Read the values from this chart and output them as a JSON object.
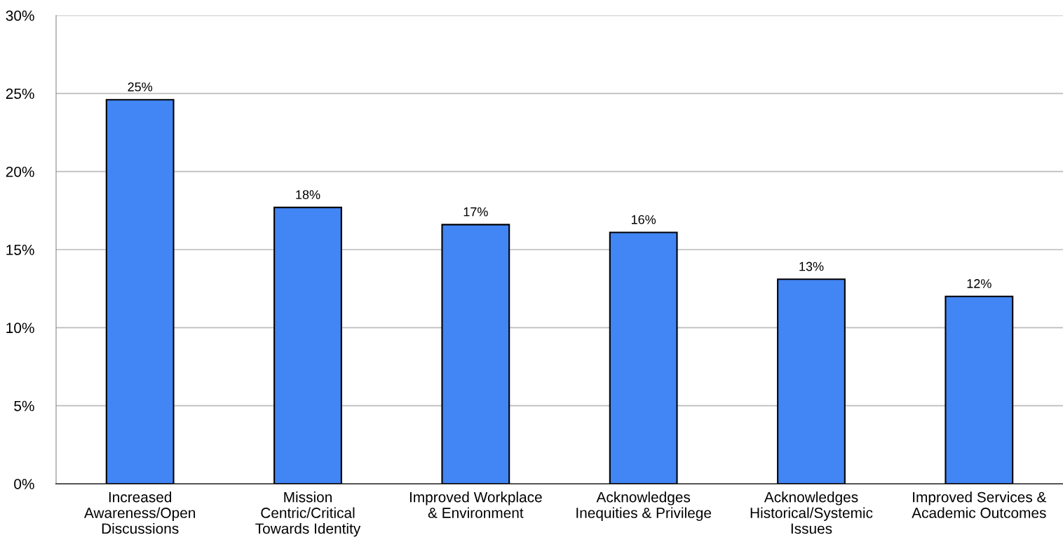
{
  "chart_data": {
    "type": "bar",
    "categories": [
      "Increased\nAwareness/Open\nDiscussions",
      "Mission\nCentric/Critical\nTowards Identity",
      "Improved Workplace\n& Environment",
      "Acknowledges\nInequities & Privilege",
      "Acknowledges\nHistorical/Systemic\nIssues",
      "Improved Services &\nAcademic Outcomes"
    ],
    "values": [
      24.6,
      17.7,
      16.6,
      16.1,
      13.1,
      12.0
    ],
    "value_labels": [
      "25%",
      "18%",
      "17%",
      "16%",
      "13%",
      "12%"
    ],
    "color": "#4285f4",
    "ylim": [
      0,
      30
    ],
    "yticks": [
      {
        "value": 0,
        "label": "0%"
      },
      {
        "value": 5,
        "label": "5%"
      },
      {
        "value": 10,
        "label": "10%"
      },
      {
        "value": 15,
        "label": "15%"
      },
      {
        "value": 20,
        "label": "20%"
      },
      {
        "value": 25,
        "label": "25%"
      },
      {
        "value": 30,
        "label": "30%"
      }
    ],
    "grid": "y"
  }
}
